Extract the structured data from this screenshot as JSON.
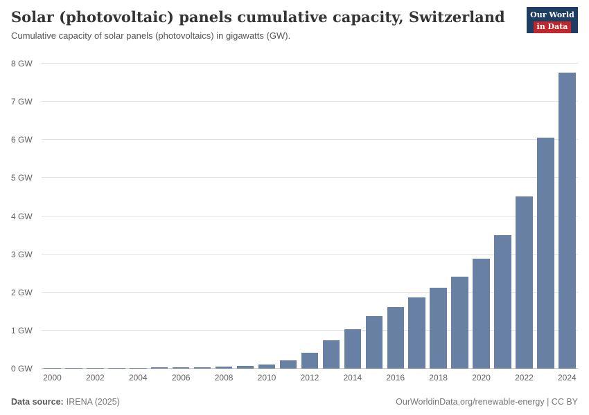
{
  "header": {
    "title": "Solar (photovoltaic) panels cumulative capacity, Switzerland",
    "subtitle": "Cumulative capacity of solar panels (photovoltaics) in gigawatts (GW).",
    "logo": {
      "line1": "Our World",
      "line2": "in Data"
    }
  },
  "chart_data": {
    "type": "bar",
    "title": "Solar (photovoltaic) panels cumulative capacity, Switzerland",
    "subtitle": "Cumulative capacity of solar panels (photovoltaics) in gigawatts (GW).",
    "unit": "GW",
    "categories": [
      2000,
      2001,
      2002,
      2003,
      2004,
      2005,
      2006,
      2007,
      2008,
      2009,
      2010,
      2011,
      2012,
      2013,
      2014,
      2015,
      2016,
      2017,
      2018,
      2019,
      2020,
      2021,
      2022,
      2023,
      2024
    ],
    "values": [
      0.02,
      0.02,
      0.02,
      0.02,
      0.02,
      0.03,
      0.03,
      0.04,
      0.05,
      0.07,
      0.11,
      0.21,
      0.42,
      0.75,
      1.04,
      1.37,
      1.62,
      1.87,
      2.12,
      2.42,
      2.88,
      3.51,
      4.52,
      6.06,
      7.76
    ],
    "ylim": [
      0,
      8
    ],
    "yticks": [
      0,
      1,
      2,
      3,
      4,
      5,
      6,
      7,
      8
    ],
    "ytick_format": "{v} GW",
    "xtick_years": [
      2000,
      2002,
      2004,
      2006,
      2008,
      2010,
      2012,
      2014,
      2016,
      2018,
      2020,
      2022,
      2024
    ],
    "grid": true,
    "legend": "none",
    "bar_color": "#6780a4"
  },
  "footer": {
    "source_label": "Data source:",
    "source_value": "IRENA (2025)",
    "right_text": "OurWorldinData.org/renewable-energy | CC BY"
  },
  "colors": {
    "background": "#ffffff",
    "bar": "#6780a4",
    "gridline": "#e2e2e2",
    "axis_text": "#5f5f5f",
    "logo_bg": "#1d3d63",
    "logo_accent": "#c0272d"
  }
}
